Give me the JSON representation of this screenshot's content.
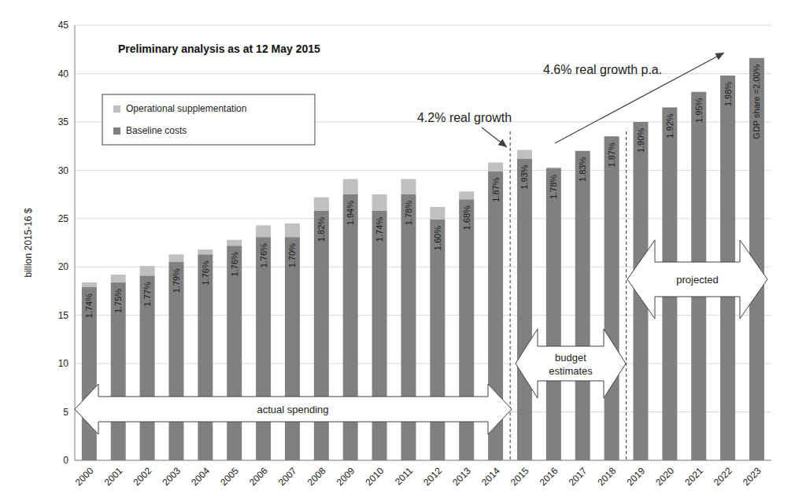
{
  "chart_data": {
    "type": "bar",
    "title": "Preliminary analysis as at 12 May 2015",
    "y_label": "billion 2015-16 $",
    "categories": [
      "2000",
      "2001",
      "2002",
      "2003",
      "2004",
      "2005",
      "2006",
      "2007",
      "2008",
      "2009",
      "2010",
      "2011",
      "2012",
      "2013",
      "2014",
      "2015",
      "2016",
      "2017",
      "2018",
      "2019",
      "2020",
      "2021",
      "2022",
      "2023"
    ],
    "series": [
      {
        "name": "Baseline costs",
        "color": "#808080",
        "values": [
          17.9,
          18.4,
          19.1,
          20.5,
          21.3,
          22.2,
          23.1,
          23.1,
          25.8,
          27.5,
          25.8,
          27.5,
          24.9,
          27.0,
          29.9,
          31.2,
          30.2,
          32.0,
          33.5,
          35.0,
          36.5,
          38.1,
          39.8,
          41.6
        ]
      },
      {
        "name": "Operational supplementation",
        "color": "#c0c0c0",
        "values": [
          0.5,
          0.8,
          1.0,
          0.8,
          0.5,
          0.6,
          1.2,
          1.4,
          1.4,
          1.6,
          1.7,
          1.6,
          1.3,
          0.8,
          0.9,
          0.9,
          0.1,
          0,
          0,
          0,
          0,
          0,
          0,
          0
        ]
      }
    ],
    "gdp_share_labels": [
      "1.74%",
      "1.75%",
      "1.77%",
      "1.79%",
      "1.76%",
      "1.76%",
      "1.76%",
      "1.70%",
      "1.82%",
      "1.94%",
      "1.74%",
      "1.78%",
      "1.60%",
      "1.68%",
      "1.87%",
      "1.93%",
      "1.78%",
      "1.83%",
      "1.87%",
      "1.90%",
      "1.92%",
      "1.95%",
      "1.98%",
      "GDP share =2.00%"
    ],
    "annotations": [
      "4.2% real growth",
      "4.6% real growth p.a.",
      "actual spending",
      "budget estimates",
      "projected"
    ],
    "stacked": true,
    "ylim": [
      0,
      45
    ],
    "yticks": [
      0,
      5,
      10,
      15,
      20,
      25,
      30,
      35,
      40,
      45
    ],
    "grid": true,
    "legend": "upper left"
  }
}
